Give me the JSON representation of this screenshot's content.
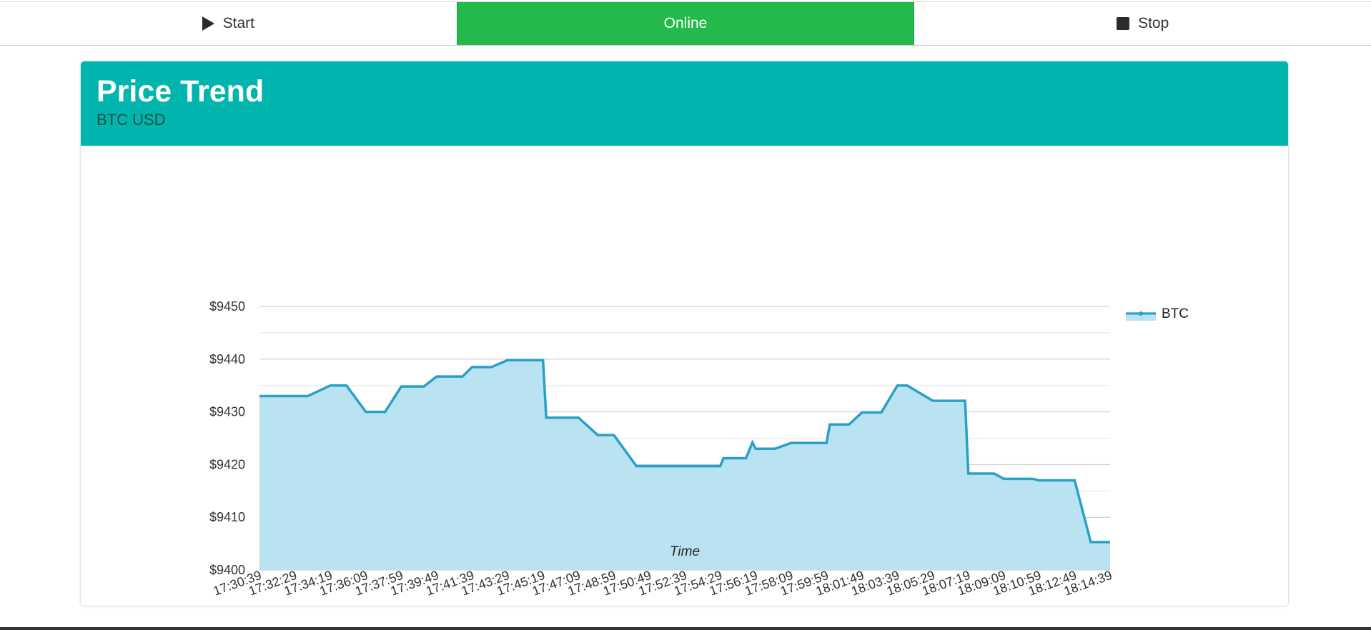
{
  "toolbar": {
    "start_label": "Start",
    "start_icon": "play-icon",
    "status_label": "Online",
    "status_color": "#23b94b",
    "stop_label": "Stop",
    "stop_icon": "stop-icon"
  },
  "card": {
    "title": "Price Trend",
    "subtitle": "BTC USD",
    "header_color": "#00b5ad"
  },
  "chart_data": {
    "type": "area",
    "step": true,
    "xlabel": "Time",
    "ylabel": "",
    "ylim": [
      9400,
      9450
    ],
    "yticks": [
      "$9450",
      "$9440",
      "$9430",
      "$9420",
      "$9410",
      "$9400"
    ],
    "ytick_values": [
      9450,
      9440,
      9430,
      9420,
      9410,
      9400
    ],
    "grid": true,
    "legend": "top-right",
    "xticks": [
      "17:30:39",
      "17:32:29",
      "17:34:19",
      "17:36:09",
      "17:37:59",
      "17:39:49",
      "17:41:39",
      "17:43:29",
      "17:45:19",
      "17:47:09",
      "17:48:59",
      "17:50:49",
      "17:52:39",
      "17:54:29",
      "17:56:19",
      "17:58:09",
      "17:59:59",
      "18:01:49",
      "18:03:39",
      "18:05:29",
      "18:07:19",
      "18:09:09",
      "18:10:59",
      "18:12:49",
      "18:14:39"
    ],
    "series": [
      {
        "name": "BTC",
        "color": "#2aa0c9",
        "fill": "#b9e3f0",
        "x": [
          "17:30:39",
          "17:32:29",
          "17:33:09",
          "17:34:19",
          "17:35:09",
          "17:36:09",
          "17:37:09",
          "17:37:59",
          "17:39:09",
          "17:39:49",
          "17:41:09",
          "17:41:39",
          "17:42:39",
          "17:43:29",
          "17:43:39",
          "17:45:19",
          "17:45:29",
          "17:47:09",
          "17:48:09",
          "17:48:59",
          "17:50:09",
          "17:50:49",
          "17:52:39",
          "17:53:39",
          "17:54:29",
          "17:54:39",
          "17:55:39",
          "17:55:49",
          "17:56:09",
          "17:56:19",
          "17:57:19",
          "17:58:09",
          "17:58:59",
          "17:59:59",
          "18:00:09",
          "18:01:09",
          "18:01:49",
          "18:02:49",
          "18:03:39",
          "18:04:09",
          "18:05:29",
          "18:06:09",
          "18:07:09",
          "18:07:19",
          "18:08:39",
          "18:09:09",
          "18:10:39",
          "18:10:59",
          "18:11:39",
          "18:12:49",
          "18:13:39",
          "18:14:39"
        ],
        "values": [
          9433.0,
          9433.0,
          9433.0,
          9435.0,
          9435.0,
          9430.0,
          9430.0,
          9434.8,
          9434.8,
          9436.7,
          9436.7,
          9438.5,
          9438.5,
          9439.8,
          9439.8,
          9439.8,
          9428.9,
          9428.9,
          9425.6,
          9425.6,
          9419.7,
          9419.7,
          9419.7,
          9419.7,
          9419.7,
          9421.2,
          9421.2,
          9421.2,
          9424.2,
          9423.0,
          9423.0,
          9424.1,
          9424.1,
          9424.1,
          9427.6,
          9427.6,
          9429.9,
          9429.9,
          9435.0,
          9435.0,
          9432.1,
          9432.1,
          9432.1,
          9418.3,
          9418.3,
          9417.3,
          9417.3,
          9417.0,
          9417.0,
          9417.0,
          9405.3,
          9405.3
        ]
      }
    ]
  }
}
